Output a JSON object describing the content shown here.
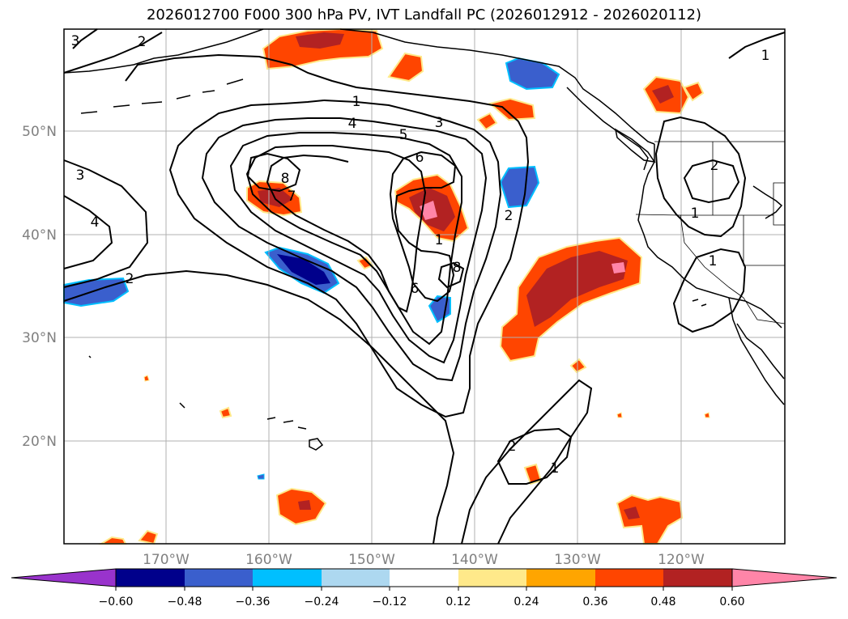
{
  "title": "2026012700 F000 300 hPa PV, IVT Landfall PC (2026012912 - 2026020112)",
  "axes": {
    "lon_labels": [
      "170°W",
      "160°W",
      "150°W",
      "140°W",
      "130°W",
      "120°W"
    ],
    "lat_labels": [
      "50°N",
      "40°N",
      "30°N",
      "20°N"
    ]
  },
  "pv_contour_labels": [
    "1",
    "2",
    "3",
    "4",
    "5",
    "6",
    "7",
    "8",
    "1",
    "2",
    "3",
    "4",
    "6",
    "8",
    "1",
    "2",
    "3",
    "1",
    "2",
    "1",
    "2",
    "1"
  ],
  "colorbar": {
    "ticks": [
      "−0.60",
      "−0.48",
      "−0.36",
      "−0.24",
      "−0.12",
      "0.12",
      "0.24",
      "0.36",
      "0.48",
      "0.60"
    ],
    "colors": [
      "#9933cc",
      "#00008b",
      "#3a5fcd",
      "#00bfff",
      "#add8f0",
      "#ffffff",
      "#ffe98a",
      "#ffa500",
      "#ff4500",
      "#b22222",
      "#ff85a8",
      "#ff85a8"
    ]
  },
  "legend": {
    "shading": "IVT Landfall PC",
    "contours": "300 hPa PV"
  }
}
